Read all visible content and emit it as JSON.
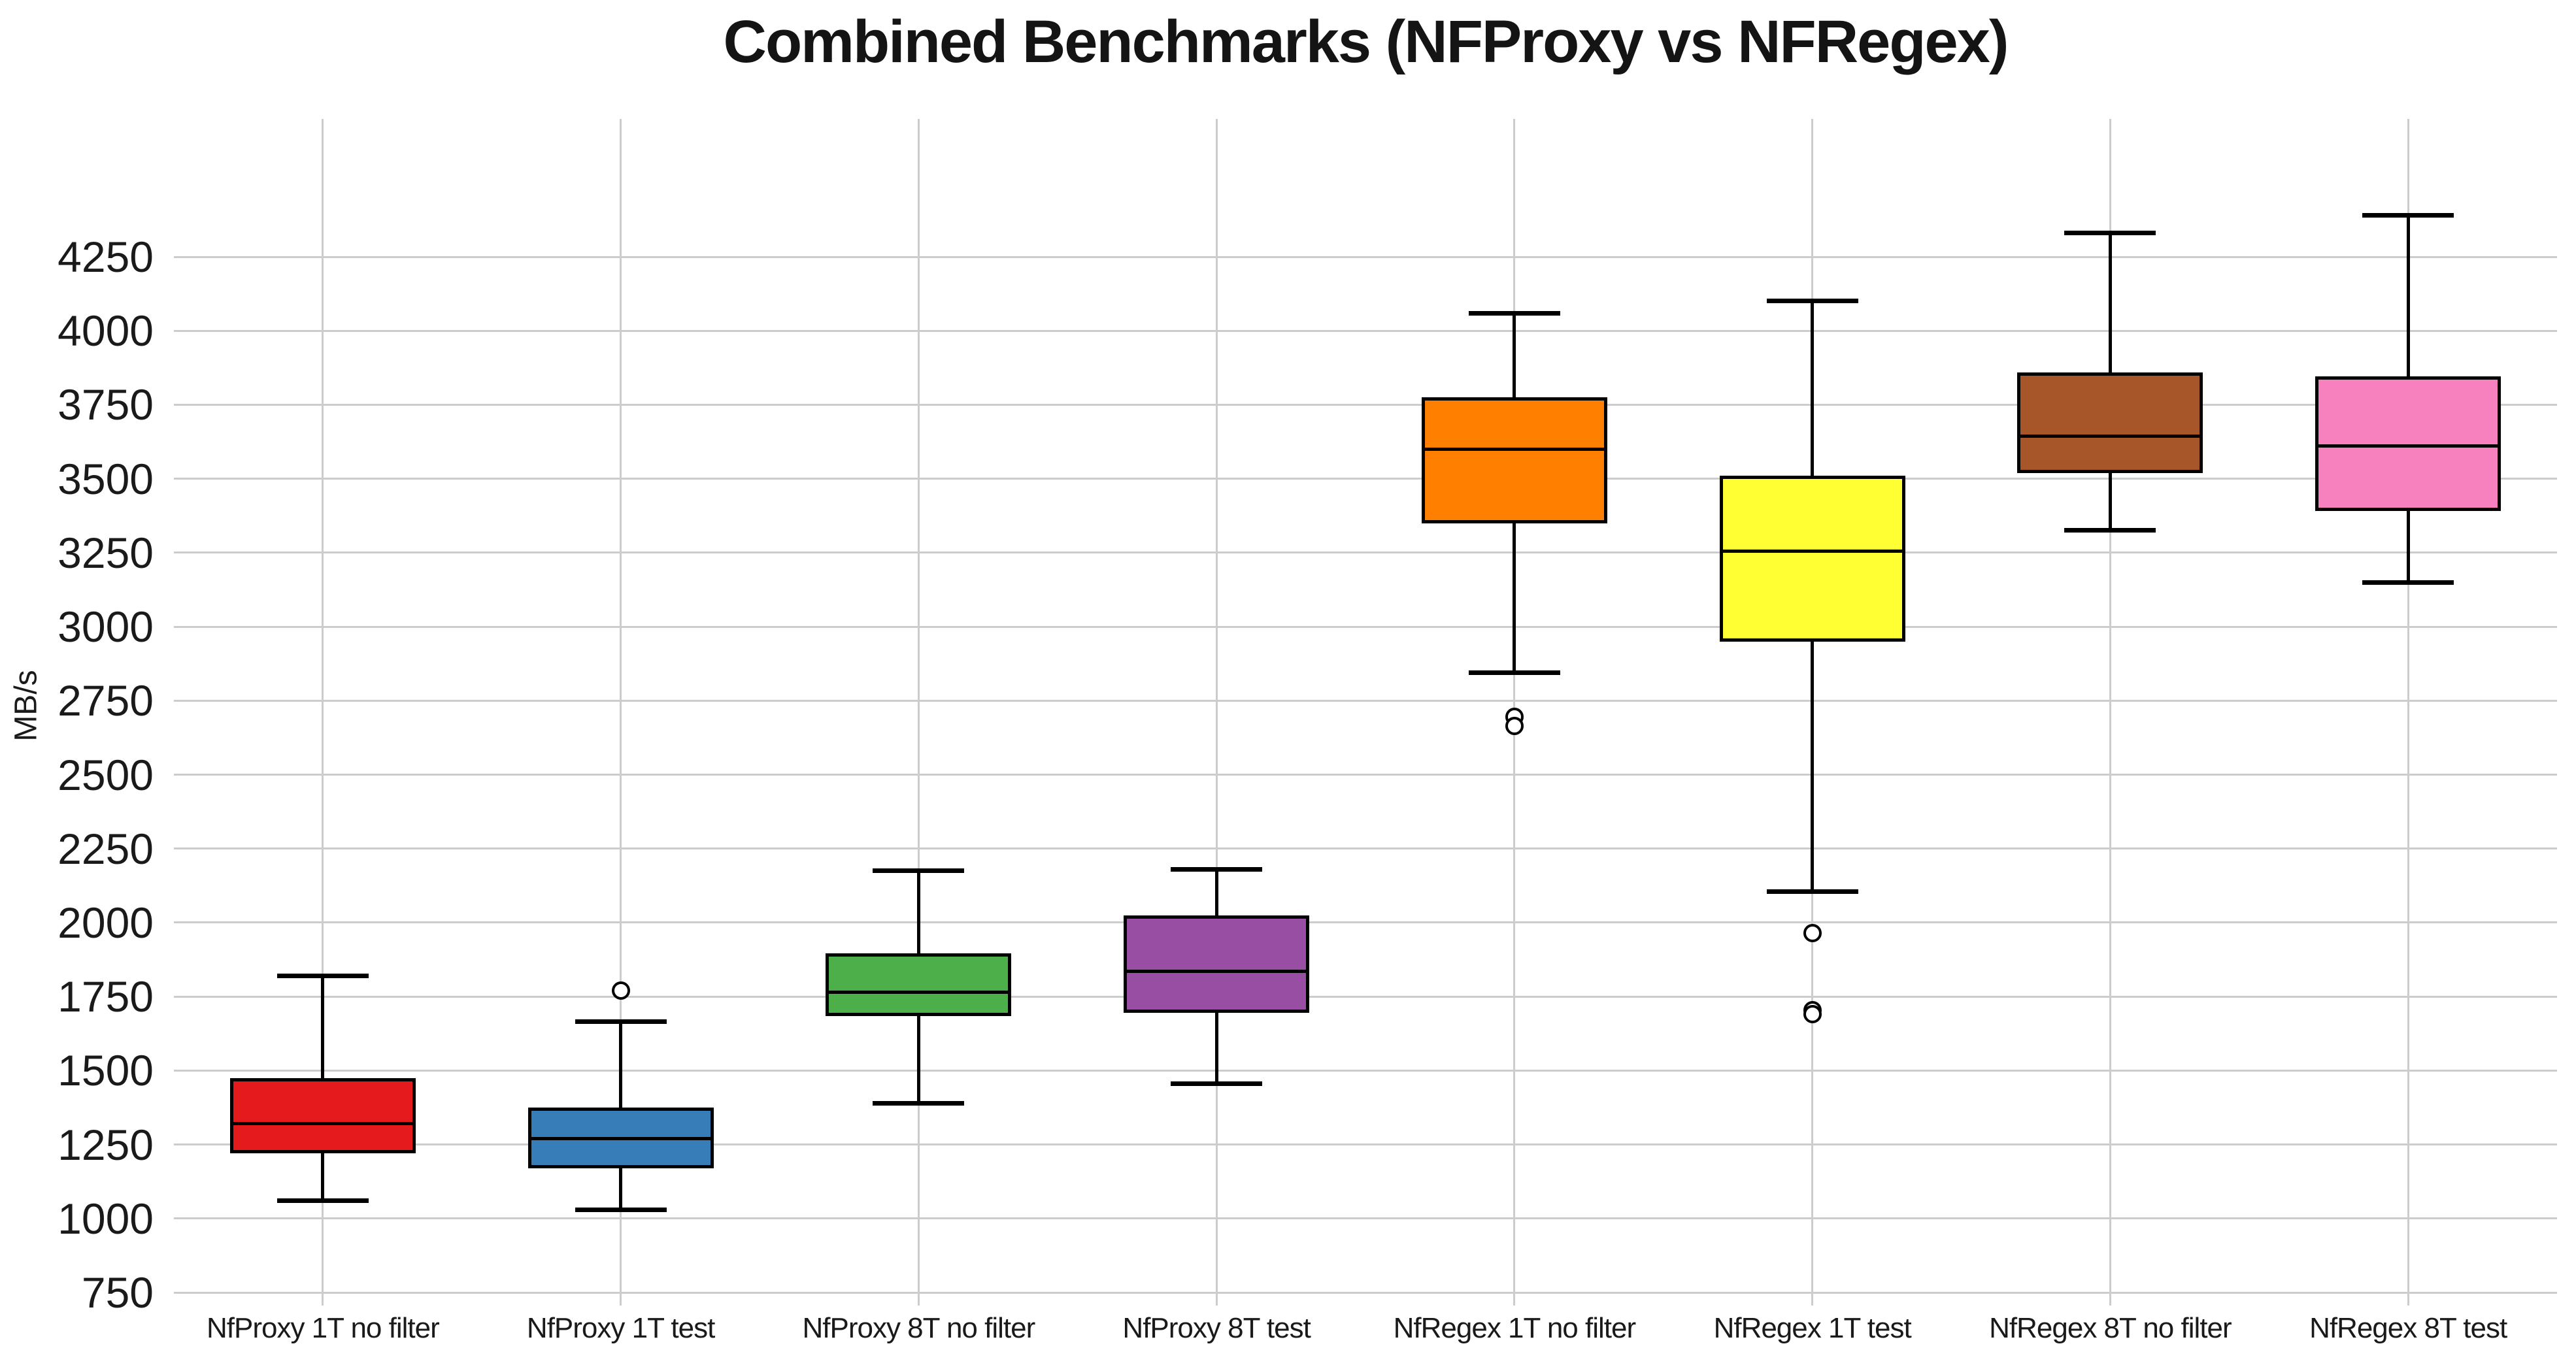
{
  "title": "Combined Benchmarks (NFProxy vs NFRegex)",
  "chart_data": {
    "type": "boxplot",
    "title": "Combined Benchmarks (NFProxy vs NFRegex)",
    "ylabel": "MB/s",
    "xlabel": "",
    "ylim": [
      750,
      4716
    ],
    "yticks": [
      750,
      1000,
      1250,
      1500,
      1750,
      2000,
      2250,
      2500,
      2750,
      3000,
      3250,
      3500,
      3750,
      4000,
      4250
    ],
    "grid": "both",
    "legend": "none",
    "gridline_color": "#cccccc",
    "text_color": "#1a1a1a",
    "box_edge_color": "#000000",
    "outlier_fill_color": "#ffffff",
    "categories": [
      "NfProxy 1T no filter",
      "NfProxy 1T test",
      "NfProxy 8T no filter",
      "NfProxy 8T test",
      "NfRegex 1T no filter",
      "NfRegex 1T test",
      "NfRegex 8T no filter",
      "NfRegex 8T test"
    ],
    "series": [
      {
        "label": "NfProxy 1T no filter",
        "color": "#e41a1c",
        "whisker_low": 1060,
        "q1": 1220,
        "median": 1320,
        "q3": 1475,
        "whisker_high": 1820,
        "outliers": []
      },
      {
        "label": "NfProxy 1T test",
        "color": "#377eb8",
        "whisker_low": 1030,
        "q1": 1170,
        "median": 1270,
        "q3": 1375,
        "whisker_high": 1665,
        "outliers": [
          1770
        ]
      },
      {
        "label": "NfProxy 8T no filter",
        "color": "#4daf4a",
        "whisker_low": 1390,
        "q1": 1685,
        "median": 1765,
        "q3": 1895,
        "whisker_high": 2175,
        "outliers": []
      },
      {
        "label": "NfProxy 8T test",
        "color": "#984ea3",
        "whisker_low": 1455,
        "q1": 1695,
        "median": 1835,
        "q3": 2025,
        "whisker_high": 2180,
        "outliers": []
      },
      {
        "label": "NfRegex 1T no filter",
        "color": "#ff7f00",
        "whisker_low": 2845,
        "q1": 3350,
        "median": 3600,
        "q3": 3775,
        "whisker_high": 4060,
        "outliers": [
          2695,
          2665
        ]
      },
      {
        "label": "NfRegex 1T test",
        "color": "#ffff33",
        "whisker_low": 2105,
        "q1": 2950,
        "median": 3255,
        "q3": 3510,
        "whisker_high": 4100,
        "outliers": [
          1965,
          1705,
          1690
        ]
      },
      {
        "label": "NfRegex 8T no filter",
        "color": "#a65628",
        "whisker_low": 3325,
        "q1": 3520,
        "median": 3645,
        "q3": 3860,
        "whisker_high": 4330,
        "outliers": []
      },
      {
        "label": "NfRegex 8T test",
        "color": "#f781bf",
        "whisker_low": 3150,
        "q1": 3390,
        "median": 3610,
        "q3": 3845,
        "whisker_high": 4390,
        "outliers": []
      }
    ]
  }
}
